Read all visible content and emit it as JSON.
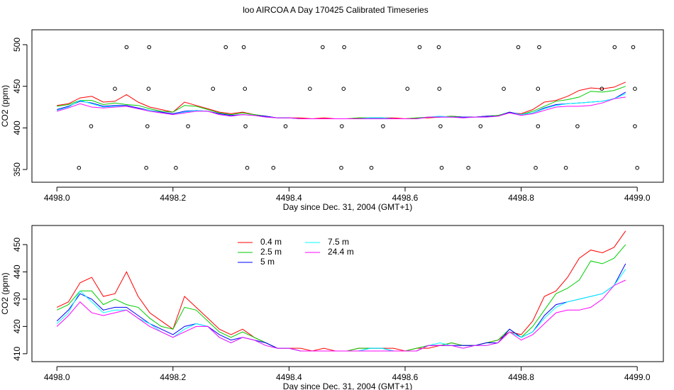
{
  "chart_data": [
    {
      "type": "line",
      "title": "loo AIRCOA A  Day 170425  Calibrated Timeseries",
      "xlabel": "Day since Dec. 31, 2004 (GMT+1)",
      "ylabel": "CO2 (ppm)",
      "xlim": [
        4497.957,
        4499.045
      ],
      "ylim": [
        334.7,
        517.9
      ],
      "xticks": [
        {
          "value": 4498,
          "label": "4498.0"
        },
        4498.2,
        4498.4,
        4498.6,
        4498.8,
        {
          "value": 4499,
          "label": "4499.0"
        }
      ],
      "yticks": [
        350,
        400,
        450,
        500
      ],
      "x": [
        4498,
        4498.02,
        4498.04,
        4498.06,
        4498.08,
        4498.1,
        4498.12,
        4498.14,
        4498.16,
        4498.18,
        4498.2,
        4498.22,
        4498.24,
        4498.26,
        4498.28,
        4498.3,
        4498.32,
        4498.34,
        4498.36,
        4498.38,
        4498.4,
        4498.42,
        4498.44,
        4498.46,
        4498.48,
        4498.5,
        4498.52,
        4498.54,
        4498.56,
        4498.58,
        4498.6,
        4498.62,
        4498.64,
        4498.66,
        4498.68,
        4498.7,
        4498.72,
        4498.74,
        4498.76,
        4498.78,
        4498.8,
        4498.82,
        4498.84,
        4498.86,
        4498.88,
        4498.9,
        4498.92,
        4498.94,
        4498.96,
        4498.98
      ],
      "series": [
        {
          "color": "#ff0000",
          "values": [
            427,
            429,
            436,
            438,
            431,
            432,
            440,
            431,
            425,
            422,
            419,
            431,
            427,
            423,
            419,
            417,
            419,
            416,
            414,
            412,
            412,
            412,
            411,
            412,
            411,
            411,
            412,
            412,
            412,
            412,
            411,
            412,
            412,
            413,
            414,
            413,
            413,
            414,
            415,
            418,
            417,
            422,
            431,
            433,
            438,
            445,
            448,
            447,
            449,
            455
          ]
        },
        {
          "color": "#00cd00",
          "values": [
            426,
            428,
            433,
            433,
            428,
            430,
            428,
            427,
            423,
            420,
            419,
            427,
            426,
            422,
            418,
            416,
            418,
            416,
            414,
            412,
            412,
            411,
            411,
            411,
            411,
            411,
            412,
            412,
            412,
            411,
            411,
            412,
            413,
            413,
            414,
            413,
            413,
            414,
            415,
            419,
            416,
            420,
            426,
            432,
            434,
            437,
            444,
            443,
            445,
            450
          ]
        },
        {
          "color": "#0000ff",
          "values": [
            422,
            426,
            432,
            430,
            426,
            427,
            427,
            424,
            421,
            419,
            417,
            420,
            421,
            420,
            417,
            415,
            416,
            415,
            414,
            412,
            412,
            411,
            411,
            411,
            411,
            411,
            411,
            412,
            412,
            411,
            411,
            411,
            413,
            413,
            413,
            413,
            413,
            414,
            414,
            419,
            416,
            418,
            424,
            428,
            429,
            430,
            431,
            432,
            435,
            443
          ]
        },
        {
          "color": "#00ffff",
          "values": [
            421,
            425,
            433,
            429,
            425,
            426,
            426,
            423,
            421,
            418,
            416,
            419,
            421,
            420,
            416,
            414,
            416,
            415,
            413,
            412,
            412,
            411,
            411,
            411,
            411,
            411,
            411,
            412,
            412,
            411,
            411,
            411,
            413,
            414,
            413,
            412,
            413,
            413,
            414,
            418,
            416,
            418,
            423,
            427,
            429,
            430,
            431,
            432,
            435,
            441
          ]
        },
        {
          "color": "#ff00ff",
          "values": [
            420,
            424,
            429,
            425,
            424,
            425,
            426,
            423,
            420,
            418,
            416,
            418,
            420,
            420,
            416,
            414,
            416,
            415,
            413,
            412,
            412,
            411,
            411,
            411,
            411,
            411,
            411,
            411,
            411,
            411,
            411,
            411,
            413,
            413,
            413,
            412,
            413,
            413,
            414,
            418,
            415,
            417,
            421,
            425,
            426,
            426,
            427,
            430,
            435,
            437
          ]
        }
      ],
      "points": {
        "x": [
          4498.12,
          4498.159,
          4498.291,
          4498.322,
          4498.458,
          4498.495,
          4498.625,
          4498.658,
          4498.795,
          4498.831,
          4498.961,
          4498.993,
          4498.1,
          4498.158,
          4498.269,
          4498.324,
          4498.436,
          4498.494,
          4498.604,
          4498.659,
          4498.77,
          4498.829,
          4498.939,
          4498.996,
          4498.059,
          4498.156,
          4498.226,
          4498.325,
          4498.394,
          4498.491,
          4498.562,
          4498.661,
          4498.73,
          4498.829,
          4498.897,
          4498.996,
          4498.038,
          4498.154,
          4498.205,
          4498.328,
          4498.373,
          4498.49,
          4498.542,
          4498.663,
          4498.709,
          4498.825,
          4498.877,
          4499.0
        ],
        "y": [
          497,
          497,
          497,
          497,
          497,
          497,
          497,
          497,
          497,
          497,
          497,
          497,
          447,
          447,
          447,
          447,
          447,
          447,
          447,
          447,
          447,
          447,
          447,
          447,
          402,
          402,
          402,
          402,
          402,
          402,
          402,
          402,
          402,
          402,
          402,
          402,
          352,
          352,
          352,
          352,
          352,
          352,
          352,
          352,
          352,
          352,
          352,
          352
        ]
      }
    },
    {
      "type": "line",
      "xlabel": "Day since Dec. 31, 2004 (GMT+1)",
      "ylabel": "CO2 (ppm)",
      "xlim": [
        4497.957,
        4499.045
      ],
      "ylim": [
        407.1,
        457
      ],
      "xticks": [
        {
          "value": 4498,
          "label": "4498.0"
        },
        4498.2,
        4498.4,
        4498.6,
        4498.8,
        {
          "value": 4499,
          "label": "4499.0"
        }
      ],
      "yticks": [
        410,
        420,
        430,
        440,
        450
      ],
      "legend": "top-left",
      "x": [
        4498,
        4498.02,
        4498.04,
        4498.06,
        4498.08,
        4498.1,
        4498.12,
        4498.14,
        4498.16,
        4498.18,
        4498.2,
        4498.22,
        4498.24,
        4498.26,
        4498.28,
        4498.3,
        4498.32,
        4498.34,
        4498.36,
        4498.38,
        4498.4,
        4498.42,
        4498.44,
        4498.46,
        4498.48,
        4498.5,
        4498.52,
        4498.54,
        4498.56,
        4498.58,
        4498.6,
        4498.62,
        4498.64,
        4498.66,
        4498.68,
        4498.7,
        4498.72,
        4498.74,
        4498.76,
        4498.78,
        4498.8,
        4498.82,
        4498.84,
        4498.86,
        4498.88,
        4498.9,
        4498.92,
        4498.94,
        4498.96,
        4498.98
      ],
      "series": [
        {
          "name": "0.4 m",
          "color": "#ff0000",
          "values": [
            427,
            429,
            436,
            438,
            431,
            432,
            440,
            431,
            425,
            422,
            419,
            431,
            427,
            423,
            419,
            417,
            419,
            416,
            414,
            412,
            412,
            412,
            411,
            412,
            411,
            411,
            412,
            412,
            412,
            412,
            411,
            412,
            412,
            413,
            414,
            413,
            413,
            414,
            415,
            418,
            417,
            422,
            431,
            433,
            438,
            445,
            448,
            447,
            449,
            455
          ]
        },
        {
          "name": "2.5 m",
          "color": "#00cd00",
          "values": [
            426,
            428,
            433,
            433,
            428,
            430,
            428,
            427,
            423,
            420,
            419,
            427,
            426,
            422,
            418,
            416,
            418,
            416,
            414,
            412,
            412,
            411,
            411,
            411,
            411,
            411,
            412,
            412,
            412,
            411,
            411,
            412,
            413,
            413,
            414,
            413,
            413,
            414,
            415,
            419,
            416,
            420,
            426,
            432,
            434,
            437,
            444,
            443,
            445,
            450
          ]
        },
        {
          "name": "5 m",
          "color": "#0000ff",
          "values": [
            422,
            426,
            432,
            430,
            426,
            427,
            427,
            424,
            421,
            419,
            417,
            420,
            421,
            420,
            417,
            415,
            416,
            415,
            414,
            412,
            412,
            411,
            411,
            411,
            411,
            411,
            411,
            412,
            412,
            411,
            411,
            411,
            413,
            413,
            413,
            413,
            413,
            414,
            414,
            419,
            416,
            418,
            424,
            428,
            429,
            430,
            431,
            432,
            435,
            443
          ]
        },
        {
          "name": "7.5 m",
          "color": "#00ffff",
          "values": [
            421,
            425,
            433,
            429,
            425,
            426,
            426,
            423,
            421,
            418,
            416,
            419,
            421,
            420,
            416,
            414,
            416,
            415,
            413,
            412,
            412,
            411,
            411,
            411,
            411,
            411,
            411,
            412,
            412,
            411,
            411,
            411,
            413,
            414,
            413,
            412,
            413,
            413,
            414,
            418,
            416,
            418,
            423,
            427,
            429,
            430,
            431,
            432,
            435,
            441
          ]
        },
        {
          "name": "24.4 m",
          "color": "#ff00ff",
          "values": [
            420,
            424,
            429,
            425,
            424,
            425,
            426,
            423,
            420,
            418,
            416,
            418,
            420,
            420,
            416,
            414,
            416,
            415,
            413,
            412,
            412,
            411,
            411,
            411,
            411,
            411,
            411,
            411,
            411,
            411,
            411,
            411,
            413,
            413,
            413,
            412,
            413,
            413,
            414,
            418,
            415,
            417,
            421,
            425,
            426,
            426,
            427,
            430,
            435,
            437
          ]
        }
      ]
    }
  ]
}
